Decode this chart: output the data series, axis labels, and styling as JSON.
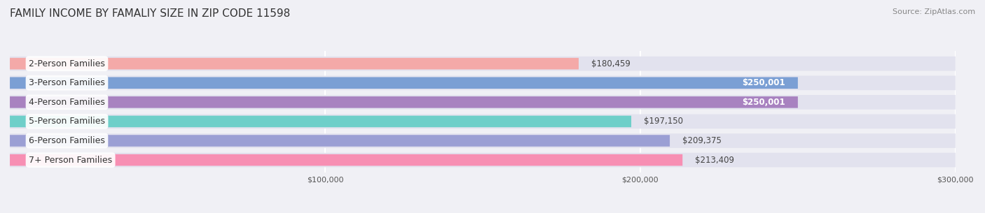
{
  "title": "FAMILY INCOME BY FAMALIY SIZE IN ZIP CODE 11598",
  "source": "Source: ZipAtlas.com",
  "categories": [
    "2-Person Families",
    "3-Person Families",
    "4-Person Families",
    "5-Person Families",
    "6-Person Families",
    "7+ Person Families"
  ],
  "values": [
    180459,
    250001,
    250001,
    197150,
    209375,
    213409
  ],
  "labels": [
    "$180,459",
    "$250,001",
    "$250,001",
    "$197,150",
    "$209,375",
    "$213,409"
  ],
  "bar_colors": [
    "#f4a9a8",
    "#7b9fd4",
    "#a882c0",
    "#6ecfc9",
    "#9b9fd4",
    "#f78fb3"
  ],
  "bg_color": "#f0f0f5",
  "bar_bg_color": "#e2e2ee",
  "xlim": [
    0,
    300000
  ],
  "xticks": [
    100000,
    200000,
    300000
  ],
  "xtick_labels": [
    "$100,000",
    "$200,000",
    "$300,000"
  ],
  "label_inside_threshold": 240000,
  "title_fontsize": 11,
  "source_fontsize": 8,
  "bar_label_fontsize": 8.5,
  "category_fontsize": 9
}
